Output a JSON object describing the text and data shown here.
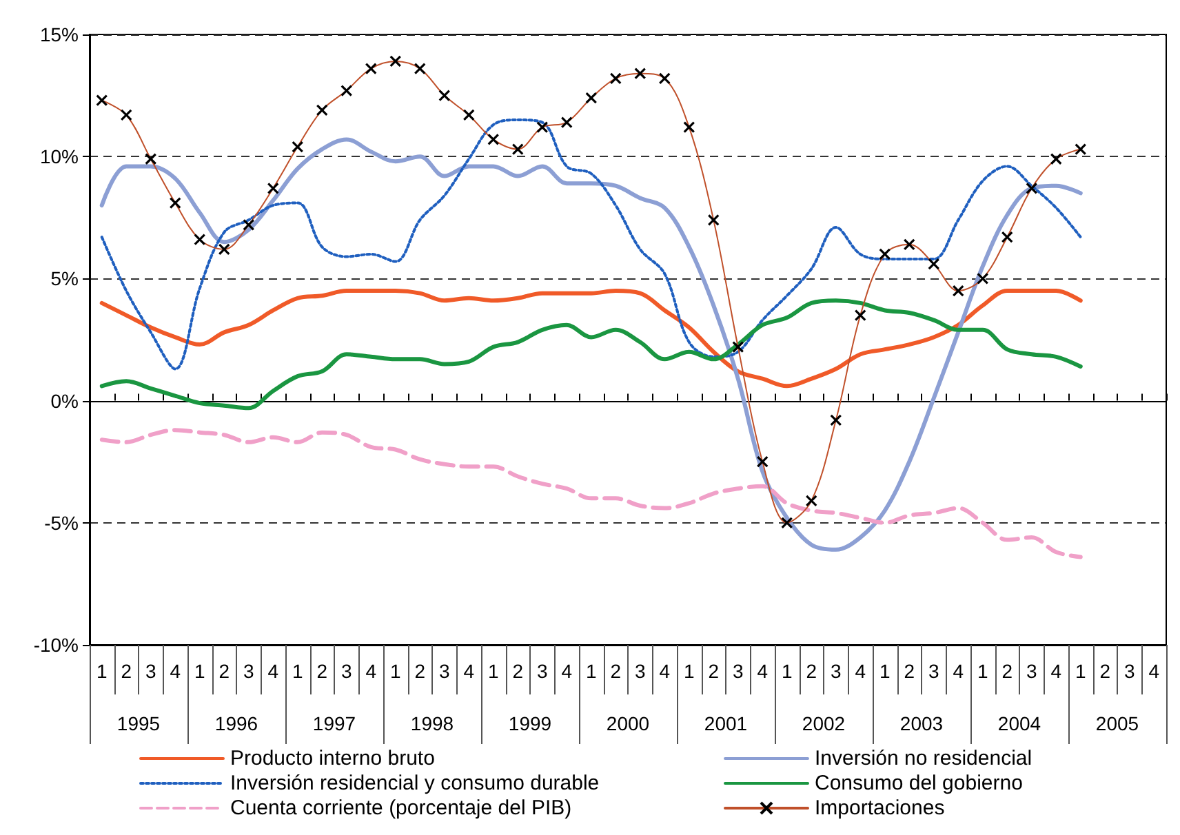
{
  "chart_data": {
    "type": "line",
    "categories": [
      "1",
      "2",
      "3",
      "4",
      "1",
      "2",
      "3",
      "4",
      "1",
      "2",
      "3",
      "4",
      "1",
      "2",
      "3",
      "4",
      "1",
      "2",
      "3",
      "4",
      "1",
      "2",
      "3",
      "4",
      "1",
      "2",
      "3",
      "4",
      "1",
      "2",
      "3",
      "4",
      "1",
      "2",
      "3",
      "4",
      "1",
      "2",
      "3",
      "4",
      "1",
      "2",
      "3",
      "4"
    ],
    "annotations": [
      "1995",
      "1996",
      "1997",
      "1998",
      "1999",
      "2000",
      "2001",
      "2002",
      "2003",
      "2004",
      "2005"
    ],
    "series": [
      {
        "name": "Producto interno bruto",
        "color": "#f05a28",
        "line_style": "solid",
        "marker": "none",
        "values": [
          4.0,
          3.5,
          3.0,
          2.6,
          2.3,
          2.8,
          3.1,
          3.7,
          4.2,
          4.3,
          4.5,
          4.5,
          4.5,
          4.4,
          4.1,
          4.2,
          4.1,
          4.2,
          4.4,
          4.4,
          4.4,
          4.5,
          4.4,
          3.7,
          3.0,
          2.0,
          1.2,
          0.9,
          0.6,
          0.9,
          1.3,
          1.9,
          2.1,
          2.3,
          2.6,
          3.1,
          3.9,
          4.5,
          4.5,
          4.5,
          4.1,
          null,
          null,
          null
        ]
      },
      {
        "name": "Inversión no residencial",
        "color": "#8c9fd4",
        "line_style": "solid",
        "marker": "none",
        "values": [
          8.0,
          9.6,
          9.6,
          9.1,
          7.7,
          6.5,
          7.0,
          8.2,
          9.5,
          10.3,
          10.7,
          10.2,
          9.8,
          10.0,
          9.2,
          9.6,
          9.6,
          9.2,
          9.6,
          8.9,
          8.9,
          8.8,
          8.3,
          7.9,
          6.3,
          3.9,
          0.9,
          -2.9,
          -4.8,
          -5.9,
          -6.1,
          -5.6,
          -4.5,
          -2.5,
          0.1,
          2.8,
          5.5,
          7.6,
          8.7,
          8.8,
          8.5,
          null,
          null,
          null
        ]
      },
      {
        "name": "Inversión residencial y consumo durable",
        "color": "#1f5fbf",
        "line_style": "dotted",
        "marker": "none",
        "values": [
          6.7,
          4.5,
          2.8,
          1.3,
          4.6,
          6.9,
          7.4,
          8.0,
          8.1,
          6.3,
          5.9,
          6.0,
          5.7,
          7.4,
          8.4,
          9.9,
          11.3,
          11.5,
          11.4,
          9.6,
          9.3,
          8.0,
          6.2,
          5.2,
          2.4,
          1.8,
          2.0,
          3.3,
          4.3,
          5.4,
          7.1,
          6.0,
          5.8,
          5.8,
          5.8,
          7.4,
          9.0,
          9.6,
          8.8,
          7.9,
          6.7,
          null,
          null,
          null
        ]
      },
      {
        "name": "Consumo del gobierno",
        "color": "#1a9641",
        "line_style": "solid",
        "marker": "none",
        "values": [
          0.6,
          0.8,
          0.5,
          0.2,
          -0.1,
          -0.2,
          -0.3,
          0.4,
          1.0,
          1.2,
          1.9,
          1.8,
          1.7,
          1.7,
          1.5,
          1.6,
          2.2,
          2.4,
          2.9,
          3.1,
          2.6,
          2.9,
          2.4,
          1.7,
          2.0,
          1.7,
          2.3,
          3.1,
          3.4,
          4.0,
          4.1,
          4.0,
          3.7,
          3.6,
          3.3,
          2.9,
          2.9,
          2.1,
          1.9,
          1.8,
          1.4,
          null,
          null,
          null
        ]
      },
      {
        "name": "Cuenta corriente (porcentaje del PIB)",
        "color": "#f0a0c8",
        "line_style": "dashed",
        "marker": "none",
        "values": [
          -1.6,
          -1.7,
          -1.4,
          -1.2,
          -1.3,
          -1.4,
          -1.7,
          -1.5,
          -1.7,
          -1.3,
          -1.4,
          -1.9,
          -2.0,
          -2.4,
          -2.6,
          -2.7,
          -2.7,
          -3.1,
          -3.4,
          -3.6,
          -4.0,
          -4.0,
          -4.3,
          -4.4,
          -4.2,
          -3.8,
          -3.6,
          -3.5,
          -4.2,
          -4.5,
          -4.6,
          -4.8,
          -5.0,
          -4.7,
          -4.6,
          -4.4,
          -5.0,
          -5.7,
          -5.6,
          -6.2,
          -6.4,
          null,
          null,
          null
        ]
      },
      {
        "name": "Importaciones",
        "color": "#c0502a",
        "line_style": "solid",
        "marker": "cross",
        "values": [
          12.3,
          11.7,
          9.9,
          8.1,
          6.6,
          6.2,
          7.2,
          8.7,
          10.4,
          11.9,
          12.7,
          13.6,
          13.9,
          13.6,
          12.5,
          11.7,
          10.7,
          10.3,
          11.2,
          11.4,
          12.4,
          13.2,
          13.4,
          13.2,
          11.2,
          7.4,
          2.2,
          -2.5,
          -5.0,
          -4.1,
          -0.8,
          3.5,
          6.0,
          6.4,
          5.6,
          4.5,
          5.0,
          6.7,
          8.7,
          9.9,
          10.3,
          null,
          null,
          null
        ]
      }
    ],
    "ylim": [
      -10,
      15
    ],
    "yticks": [
      {
        "value": -10,
        "label": "-10%"
      },
      {
        "value": -5,
        "label": "-5%"
      },
      {
        "value": 0,
        "label": "0%"
      },
      {
        "value": 5,
        "label": "5%"
      },
      {
        "value": 10,
        "label": "10%"
      },
      {
        "value": 15,
        "label": "15%"
      }
    ],
    "grid": "y",
    "legend": "bottom"
  }
}
